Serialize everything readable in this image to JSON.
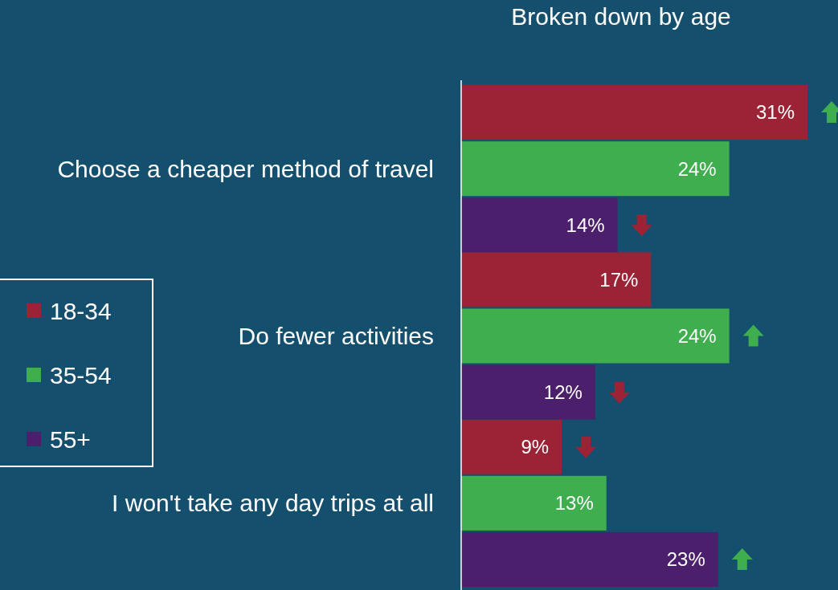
{
  "chart_data": {
    "type": "bar",
    "orientation": "horizontal",
    "title": "Broken down by age",
    "categories": [
      "Choose a cheaper method of travel",
      "Do fewer activities",
      "I won't take any day trips at all"
    ],
    "series": [
      {
        "name": "18-34",
        "color": "#9b2335",
        "values": [
          31,
          17,
          9
        ],
        "value_labels": [
          "31%",
          "17%",
          "9%"
        ]
      },
      {
        "name": "35-54",
        "color": "#3fae4e",
        "values": [
          24,
          24,
          13
        ],
        "value_labels": [
          "24%",
          "24%",
          "13%"
        ]
      },
      {
        "name": "55+",
        "color": "#4b1f6b",
        "values": [
          14,
          12,
          23
        ],
        "value_labels": [
          "14%",
          "12%",
          "23%"
        ]
      }
    ],
    "legend": "left"
  }
}
